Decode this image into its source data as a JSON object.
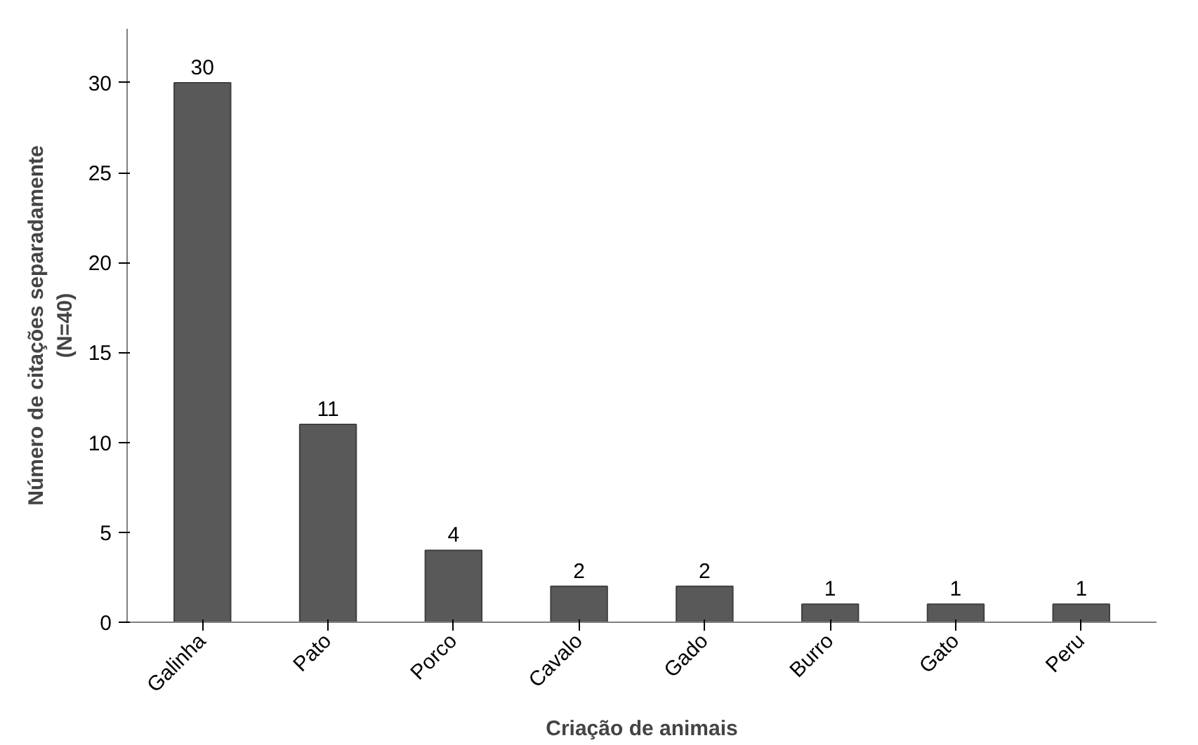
{
  "chart_data": {
    "type": "bar",
    "xlabel": "Criação de animais",
    "ylabel": "Número de citações separadamente\n(N=40)",
    "categories": [
      "Galinha",
      "Pato",
      "Porco",
      "Cavalo",
      "Gado",
      "Burro",
      "Gato",
      "Peru"
    ],
    "values": [
      30,
      11,
      4,
      2,
      2,
      1,
      1,
      1
    ],
    "color": "#595959",
    "ylim": [
      0,
      33
    ],
    "yticks": [
      0,
      5,
      10,
      15,
      20,
      25,
      30
    ],
    "data_labels": true,
    "grid": false
  }
}
